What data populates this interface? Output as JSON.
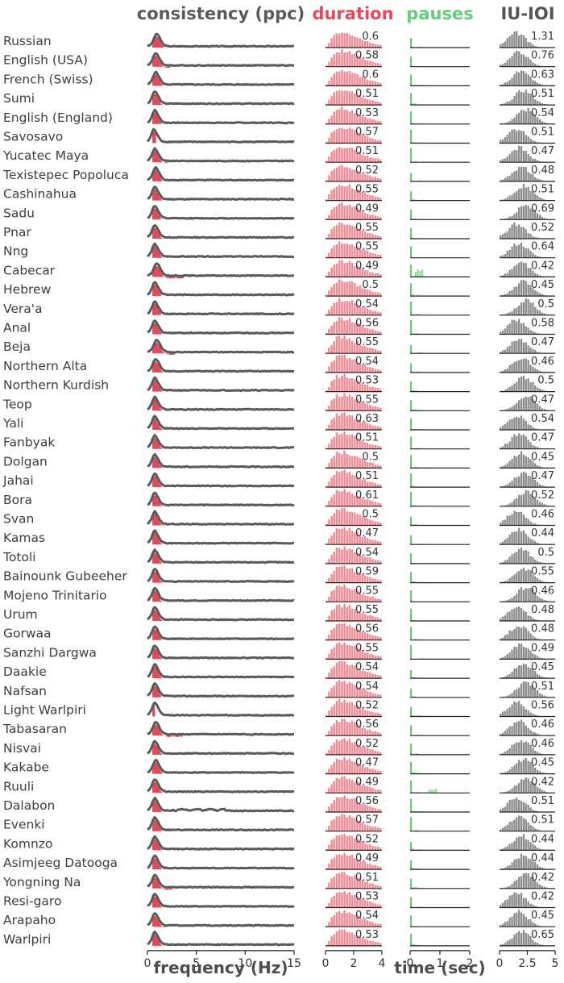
{
  "colors": {
    "consistency": "#5a5a5a",
    "consistency_fill": "#e0404f",
    "duration": "#e8485a",
    "duration_bar": "#f08c96",
    "pauses": "#66cc77",
    "pauses_bar": "#8fdc99",
    "iuioi": "#555555",
    "iuioi_bar": "#8c8c8c",
    "label": "#3d3d3d"
  },
  "panels": {
    "consistency": {
      "title": "consistency (ppc)",
      "xticks": [
        "0",
        "5",
        "10",
        "15"
      ],
      "xlim": [
        0,
        15
      ],
      "xlabel": "frequency (Hz)"
    },
    "duration": {
      "title": "duration",
      "xticks": [
        "0",
        "2",
        "4"
      ],
      "xlim": [
        0,
        4
      ]
    },
    "pauses": {
      "title": "pauses",
      "xticks": [
        "0",
        "1",
        "2"
      ],
      "xlim": [
        0,
        2
      ],
      "xlabel": "time (sec)"
    },
    "iuioi": {
      "title": "IU-IOI",
      "xticks": [
        "0",
        "2.5",
        "5"
      ],
      "xlim": [
        0,
        5
      ]
    }
  },
  "chart_data": {
    "type": "bar",
    "languages": [
      "Russian",
      "English (USA)",
      "French (Swiss)",
      "Sumi",
      "English (England)",
      "Savosavo",
      "Yucatec Maya",
      "Texistepec Popoluca",
      "Cashinahua",
      "Sadu",
      "Pnar",
      "Nng",
      "Cabecar",
      "Hebrew",
      "Vera'a",
      "Anal",
      "Beja",
      "Northern Alta",
      "Northern Kurdish",
      "Teop",
      "Yali",
      "Fanbyak",
      "Dolgan",
      "Jahai",
      "Bora",
      "Svan",
      "Kamas",
      "Totoli",
      "Bainounk Gubeeher",
      "Mojeno Trinitario",
      "Urum",
      "Gorwaa",
      "Sanzhi Dargwa",
      "Daakie",
      "Nafsan",
      "Light Warlpiri",
      "Tabasaran",
      "Nisvai",
      "Kakabe",
      "Ruuli",
      "Dalabon",
      "Evenki",
      "Komnzo",
      "Asimjeeg Datooga",
      "Yongning Na",
      "Resi-garo",
      "Arapaho",
      "Warlpiri"
    ],
    "duration_values": [
      "0.6",
      "0.58",
      "0.6",
      "0.51",
      "0.53",
      "0.57",
      "0.51",
      "0.52",
      "0.55",
      "0.49",
      "0.55",
      "0.55",
      "0.49",
      "0.5",
      "0.54",
      "0.56",
      "0.55",
      "0.54",
      "0.53",
      "0.55",
      "0.63",
      "0.51",
      "0.5",
      "0.51",
      "0.61",
      "0.5",
      "0.47",
      "0.54",
      "0.59",
      "0.55",
      "0.55",
      "0.56",
      "0.55",
      "0.54",
      "0.54",
      "0.52",
      "0.56",
      "0.52",
      "0.47",
      "0.49",
      "0.56",
      "0.57",
      "0.52",
      "0.49",
      "0.51",
      "0.53",
      "0.54",
      "0.53"
    ],
    "iuioi_values": [
      "1.31",
      "0.76",
      "0.63",
      "0.51",
      "0.54",
      "0.51",
      "0.47",
      "0.48",
      "0.51",
      "0.69",
      "0.52",
      "0.64",
      "0.42",
      "0.45",
      "0.5",
      "0.58",
      "0.47",
      "0.46",
      "0.5",
      "0.47",
      "0.54",
      "0.47",
      "0.45",
      "0.47",
      "0.52",
      "0.46",
      "0.44",
      "0.5",
      "0.55",
      "0.46",
      "0.48",
      "0.48",
      "0.49",
      "0.45",
      "0.51",
      "0.56",
      "0.46",
      "0.46",
      "0.45",
      "0.42",
      "0.51",
      "0.51",
      "0.44",
      "0.44",
      "0.42",
      "0.42",
      "0.45",
      "0.65"
    ],
    "consistency_fill_end_hz": [
      2.0,
      2.4,
      1.8,
      1.6,
      1.5,
      0.9,
      2.2,
      1.5,
      1.6,
      1.4,
      1.6,
      1.5,
      3.8,
      1.4,
      1.4,
      1.5,
      2.8,
      1.8,
      1.6,
      1.5,
      1.6,
      1.5,
      1.6,
      1.5,
      1.5,
      1.8,
      1.5,
      1.5,
      1.7,
      1.6,
      1.7,
      1.6,
      1.5,
      1.5,
      1.4,
      0.8,
      3.6,
      1.6,
      1.5,
      1.6,
      1.5,
      1.6,
      1.5,
      1.7,
      2.6,
      1.5,
      1.8,
      1.5
    ],
    "consistency_peak_hz": [
      0.9,
      0.8,
      0.8,
      0.7,
      0.7,
      0.6,
      0.7,
      0.8,
      0.7,
      0.7,
      0.7,
      0.7,
      0.9,
      0.7,
      0.7,
      0.7,
      0.9,
      0.8,
      0.7,
      0.7,
      0.7,
      0.7,
      0.7,
      0.7,
      0.7,
      0.7,
      0.7,
      0.7,
      0.7,
      0.7,
      0.7,
      0.7,
      0.7,
      0.7,
      0.7,
      0.7,
      0.8,
      0.7,
      0.8,
      0.7,
      0.7,
      0.7,
      0.7,
      0.7,
      0.7,
      0.7,
      0.7,
      0.7
    ]
  }
}
